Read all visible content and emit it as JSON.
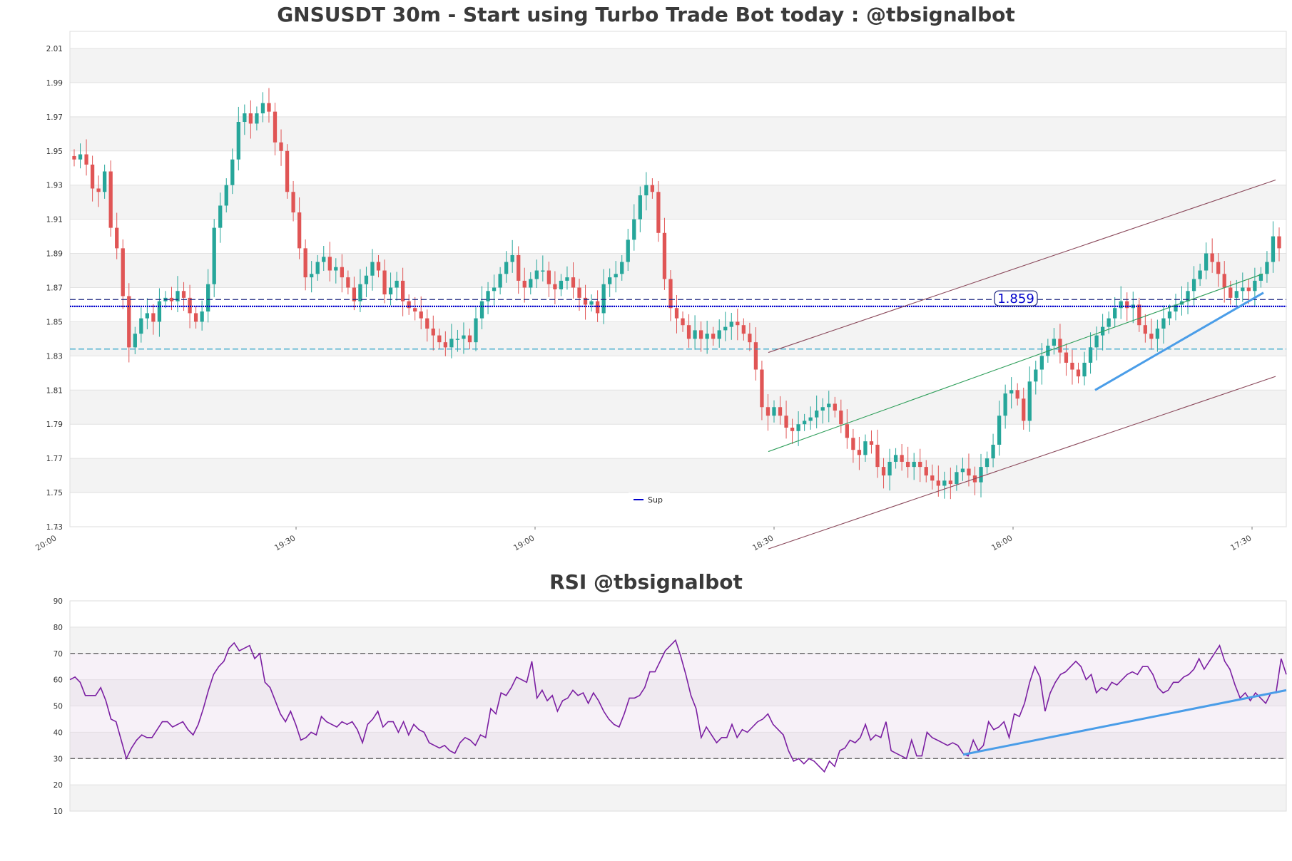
{
  "chart_data": [
    {
      "type": "candlestick",
      "title": "GNSUSDT 30m - Start using Turbo Trade Bot today : @tbsignalbot",
      "ylim": [
        1.73,
        2.02
      ],
      "y_ticks": [
        "1.73",
        "1.75",
        "1.77",
        "1.79",
        "1.81",
        "1.83",
        "1.85",
        "1.87",
        "1.89",
        "1.91",
        "1.93",
        "1.95",
        "1.97",
        "1.99",
        "2.01"
      ],
      "x_ticks": [
        "20:00",
        "19:30",
        "19:00",
        "18:30",
        "18:00",
        "17:30"
      ],
      "grid": true,
      "legend": {
        "position": "bottom-center",
        "entries": [
          "Sup"
        ]
      },
      "price_label": "1.859",
      "levels": {
        "sup": 1.859,
        "dash_navy": 1.863,
        "dash_cyan": 1.834
      },
      "closes": [
        1.945,
        1.948,
        1.942,
        1.928,
        1.926,
        1.938,
        1.905,
        1.893,
        1.865,
        1.835,
        1.843,
        1.852,
        1.855,
        1.85,
        1.862,
        1.864,
        1.862,
        1.868,
        1.864,
        1.855,
        1.85,
        1.856,
        1.872,
        1.905,
        1.918,
        1.93,
        1.945,
        1.967,
        1.972,
        1.966,
        1.972,
        1.978,
        1.973,
        1.955,
        1.95,
        1.926,
        1.914,
        1.893,
        1.876,
        1.878,
        1.885,
        1.888,
        1.88,
        1.882,
        1.876,
        1.87,
        1.862,
        1.872,
        1.877,
        1.885,
        1.88,
        1.866,
        1.87,
        1.874,
        1.862,
        1.858,
        1.856,
        1.852,
        1.846,
        1.842,
        1.838,
        1.835,
        1.84,
        1.84,
        1.842,
        1.838,
        1.852,
        1.862,
        1.868,
        1.87,
        1.878,
        1.885,
        1.889,
        1.874,
        1.87,
        1.875,
        1.88,
        1.88,
        1.872,
        1.869,
        1.874,
        1.876,
        1.87,
        1.864,
        1.86,
        1.862,
        1.855,
        1.872,
        1.876,
        1.878,
        1.885,
        1.898,
        1.91,
        1.924,
        1.93,
        1.926,
        1.902,
        1.875,
        1.858,
        1.852,
        1.848,
        1.84,
        1.845,
        1.84,
        1.843,
        1.84,
        1.845,
        1.847,
        1.85,
        1.848,
        1.843,
        1.838,
        1.822,
        1.8,
        1.795,
        1.8,
        1.795,
        1.788,
        1.786,
        1.79,
        1.792,
        1.794,
        1.798,
        1.8,
        1.802,
        1.798,
        1.79,
        1.782,
        1.775,
        1.772,
        1.78,
        1.778,
        1.765,
        1.76,
        1.768,
        1.772,
        1.768,
        1.765,
        1.768,
        1.765,
        1.76,
        1.757,
        1.754,
        1.757,
        1.755,
        1.762,
        1.764,
        1.76,
        1.756,
        1.765,
        1.77,
        1.778,
        1.795,
        1.808,
        1.81,
        1.805,
        1.792,
        1.815,
        1.822,
        1.83,
        1.836,
        1.84,
        1.832,
        1.826,
        1.822,
        1.818,
        1.826,
        1.835,
        1.842,
        1.847,
        1.852,
        1.858,
        1.862,
        1.858,
        1.86,
        1.848,
        1.843,
        1.84,
        1.846,
        1.852,
        1.856,
        1.86,
        1.862,
        1.868,
        1.875,
        1.88,
        1.89,
        1.885,
        1.878,
        1.87,
        1.864,
        1.868,
        1.87,
        1.868,
        1.874,
        1.878,
        1.885,
        1.9,
        1.893
      ]
    },
    {
      "type": "line",
      "title": "RSI @tbsignalbot",
      "ylim": [
        10,
        90
      ],
      "y_ticks": [
        "10",
        "20",
        "30",
        "40",
        "50",
        "60",
        "70",
        "80",
        "90"
      ],
      "bands": {
        "overbought": 70,
        "oversold": 30
      },
      "values": [
        60,
        61,
        59,
        54,
        54,
        54,
        57,
        52,
        45,
        44,
        37,
        30,
        34,
        37,
        39,
        38,
        38,
        41,
        44,
        44,
        42,
        43,
        44,
        41,
        39,
        43,
        49,
        56,
        62,
        65,
        67,
        72,
        74,
        71,
        72,
        73,
        68,
        70,
        59,
        57,
        52,
        47,
        44,
        48,
        43,
        37,
        38,
        40,
        39,
        46,
        44,
        43,
        42,
        44,
        43,
        44,
        41,
        36,
        43,
        45,
        48,
        42,
        44,
        44,
        40,
        44,
        39,
        43,
        41,
        40,
        36,
        35,
        34,
        35,
        33,
        32,
        36,
        38,
        37,
        35,
        39,
        38,
        49,
        47,
        55,
        54,
        57,
        61,
        60,
        59,
        67,
        53,
        56,
        52,
        54,
        48,
        52,
        53,
        56,
        54,
        55,
        51,
        55,
        52,
        48,
        45,
        43,
        42,
        47,
        53,
        53,
        54,
        57,
        63,
        63,
        67,
        71,
        73,
        75,
        69,
        62,
        54,
        49,
        38,
        42,
        39,
        36,
        38,
        38,
        43,
        38,
        41,
        40,
        42,
        44,
        45,
        47,
        43,
        41,
        39,
        33,
        29,
        30,
        28,
        30,
        29,
        27,
        25,
        29,
        27,
        33,
        34,
        37,
        36,
        38,
        43,
        37,
        39,
        38,
        44,
        33,
        32,
        31,
        30,
        37,
        31,
        31,
        40,
        38,
        37,
        36,
        35,
        36,
        35,
        32,
        31,
        37,
        33,
        35,
        44,
        41,
        42,
        44,
        38,
        47,
        46,
        51,
        59,
        65,
        61,
        48,
        55,
        59,
        62,
        63,
        65,
        67,
        65,
        60,
        62,
        55,
        57,
        56,
        59,
        58,
        60,
        62,
        63,
        62,
        65,
        65,
        62,
        57,
        55,
        56,
        59,
        59,
        61,
        62,
        64,
        68,
        64,
        67,
        70,
        73,
        67,
        64,
        58,
        53,
        55,
        52,
        55,
        53,
        51,
        55,
        55,
        68,
        62
      ]
    }
  ]
}
